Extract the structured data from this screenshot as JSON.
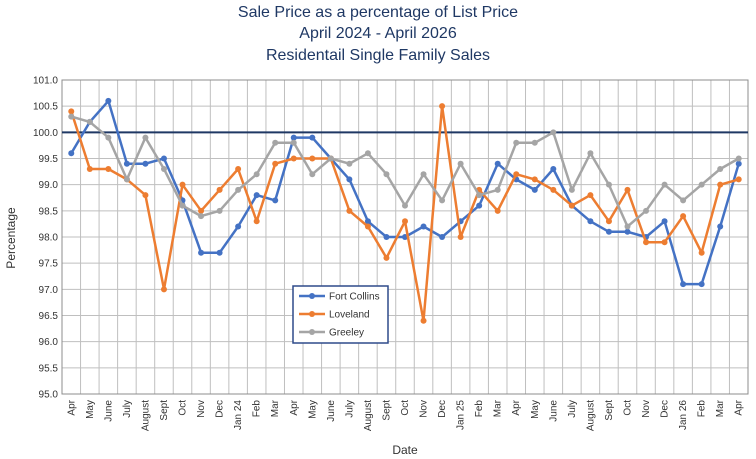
{
  "chart_data": {
    "type": "line",
    "title": "Sale Price as a percentage of List Price",
    "subtitle": "April 2024 - April 2026",
    "subtitle2": "Residentail Single Family Sales",
    "xlabel": "Date",
    "ylabel": "Percentage",
    "ylim": [
      95.0,
      101.0
    ],
    "ytick_step": 0.5,
    "grid": true,
    "legend_position": "bottom-center",
    "categories": [
      "Apr",
      "May",
      "June",
      "July",
      "August",
      "Sept",
      "Oct",
      "Nov",
      "Dec",
      "Jan 24",
      "Feb",
      "Mar",
      "Apr",
      "May",
      "June",
      "July",
      "August",
      "Sept",
      "Oct",
      "Nov",
      "Dec",
      "Jan 25",
      "Feb",
      "Mar",
      "Apr",
      "May",
      "June",
      "July",
      "August",
      "Sept",
      "Oct",
      "Nov",
      "Dec",
      "Jan 26",
      "Feb",
      "Mar",
      "Apr"
    ],
    "series": [
      {
        "name": "Fort Collins",
        "color": "#4472c4",
        "values": [
          99.6,
          100.2,
          100.6,
          99.4,
          99.4,
          99.5,
          98.7,
          97.7,
          97.7,
          98.2,
          98.8,
          98.7,
          99.9,
          99.9,
          99.5,
          99.1,
          98.3,
          98.0,
          98.0,
          98.2,
          98.0,
          98.3,
          98.6,
          99.4,
          99.1,
          98.9,
          99.3,
          98.6,
          98.3,
          98.1,
          98.1,
          98.0,
          98.3,
          97.1,
          97.1,
          98.2,
          99.4
        ]
      },
      {
        "name": "Loveland",
        "color": "#ed7d31",
        "values": [
          100.4,
          99.3,
          99.3,
          99.1,
          98.8,
          97.0,
          99.0,
          98.5,
          98.9,
          99.3,
          98.3,
          99.4,
          99.5,
          99.5,
          99.5,
          98.5,
          98.2,
          97.6,
          98.3,
          96.4,
          100.5,
          98.0,
          98.9,
          98.5,
          99.2,
          99.1,
          98.9,
          98.6,
          98.8,
          98.3,
          98.9,
          97.9,
          97.9,
          98.4,
          97.7,
          99.0,
          99.1
        ]
      },
      {
        "name": "Greeley",
        "color": "#a5a5a5",
        "values": [
          100.3,
          100.2,
          99.9,
          99.1,
          99.9,
          99.3,
          98.6,
          98.4,
          98.5,
          98.9,
          99.2,
          99.8,
          99.8,
          99.2,
          99.5,
          99.4,
          99.6,
          99.2,
          98.6,
          99.2,
          98.7,
          99.4,
          98.8,
          98.9,
          99.8,
          99.8,
          100.0,
          98.9,
          99.6,
          99.0,
          98.2,
          98.5,
          99.0,
          98.7,
          99.0,
          99.3,
          99.5
        ]
      }
    ]
  }
}
